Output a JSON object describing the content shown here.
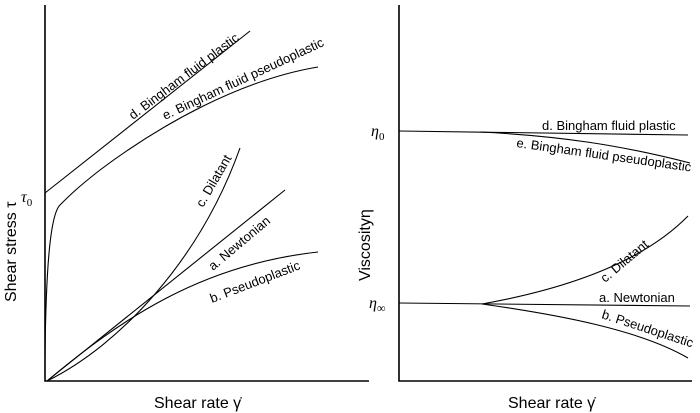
{
  "left_panel": {
    "y_axis_label": "Shear stress τ",
    "x_axis_label": "Shear rate γ̇",
    "tau0_label": "τ0",
    "curves": {
      "bingham_plastic": "d. Bingham fluid plastic",
      "bingham_pseudoplastic": "e. Bingham  fluid pseudoplastic",
      "dilatant": "c. Dilatant",
      "newtonian": "a. Newtonian",
      "pseudoplastic": "b. Pseudoplastic"
    }
  },
  "right_panel": {
    "y_axis_label": "Viscosityη",
    "x_axis_label": "Shear rate γ̇",
    "eta0_label": "η0",
    "eta_inf_label": "η∞",
    "curves": {
      "bingham_plastic": "d. Bingham fluid plastic",
      "bingham_pseudoplastic": "e. Bingham fluid pseudoplastic",
      "dilatant": "c. Dilatant",
      "newtonian": "a. Newtonian",
      "pseudoplastic": "b. Pseudoplastic"
    }
  }
}
